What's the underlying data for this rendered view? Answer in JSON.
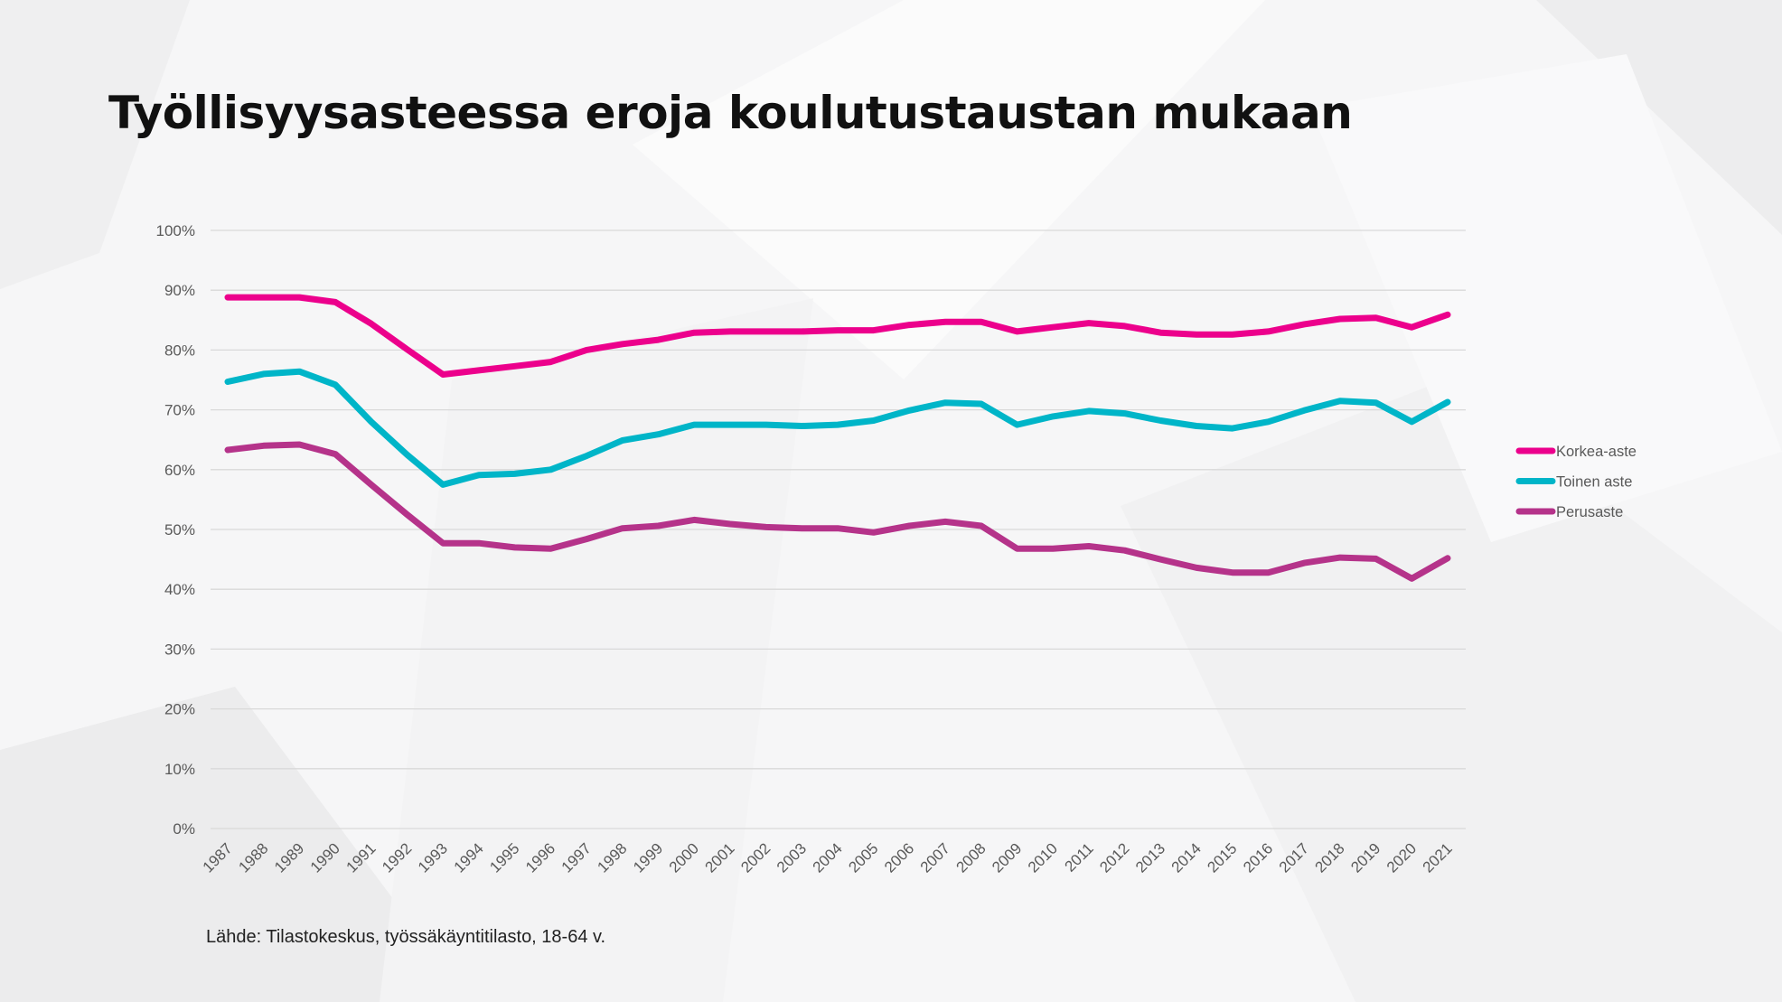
{
  "title": "Työllisyysasteessa eroja koulutustaustan mukaan",
  "source": "Lähde: Tilastokeskus, työssäkäyntitilasto, 18-64 v.",
  "chart_data": {
    "type": "line",
    "title": "Työllisyysasteessa eroja koulutustaustan mukaan",
    "xlabel": "",
    "ylabel": "",
    "ylim": [
      0,
      100
    ],
    "yticks": [
      "0%",
      "10%",
      "20%",
      "30%",
      "40%",
      "50%",
      "60%",
      "70%",
      "80%",
      "90%",
      "100%"
    ],
    "grid": true,
    "legend_position": "right",
    "x": [
      "1987",
      "1988",
      "1989",
      "1990",
      "1991",
      "1992",
      "1993",
      "1994",
      "1995",
      "1996",
      "1997",
      "1998",
      "1999",
      "2000",
      "2001",
      "2002",
      "2003",
      "2004",
      "2005",
      "2006",
      "2007",
      "2008",
      "2009",
      "2010",
      "2011",
      "2012",
      "2013",
      "2014",
      "2015",
      "2016",
      "2017",
      "2018",
      "2019",
      "2020",
      "2021"
    ],
    "series": [
      {
        "name": "Korkea-aste",
        "color": "#ec008c",
        "values": [
          88.8,
          88.8,
          88.8,
          88.0,
          84.4,
          80.1,
          75.9,
          76.6,
          77.3,
          78.0,
          80.0,
          81.0,
          81.7,
          82.9,
          83.1,
          83.1,
          83.1,
          83.3,
          83.3,
          84.2,
          84.7,
          84.7,
          83.1,
          83.8,
          84.5,
          84.0,
          82.9,
          82.6,
          82.6,
          83.1,
          84.3,
          85.2,
          85.4,
          83.8,
          85.9
        ]
      },
      {
        "name": "Toinen aste",
        "color": "#00b5c8",
        "values": [
          74.7,
          76.0,
          76.4,
          74.2,
          68.0,
          62.5,
          57.5,
          59.1,
          59.3,
          60.0,
          62.3,
          64.9,
          65.9,
          67.5,
          67.5,
          67.5,
          67.3,
          67.5,
          68.2,
          69.9,
          71.2,
          71.0,
          67.5,
          68.9,
          69.8,
          69.4,
          68.2,
          67.3,
          66.9,
          68.0,
          69.9,
          71.5,
          71.2,
          68.0,
          71.3
        ]
      },
      {
        "name": "Perusaste",
        "color": "#b5338a",
        "values": [
          63.3,
          64.0,
          64.2,
          62.6,
          57.5,
          52.5,
          47.7,
          47.7,
          47.0,
          46.8,
          48.4,
          50.2,
          50.6,
          51.6,
          50.9,
          50.4,
          50.2,
          50.2,
          49.5,
          50.6,
          51.3,
          50.6,
          46.8,
          46.8,
          47.2,
          46.5,
          45.0,
          43.6,
          42.8,
          42.8,
          44.4,
          45.3,
          45.1,
          41.8,
          45.2
        ]
      }
    ]
  }
}
